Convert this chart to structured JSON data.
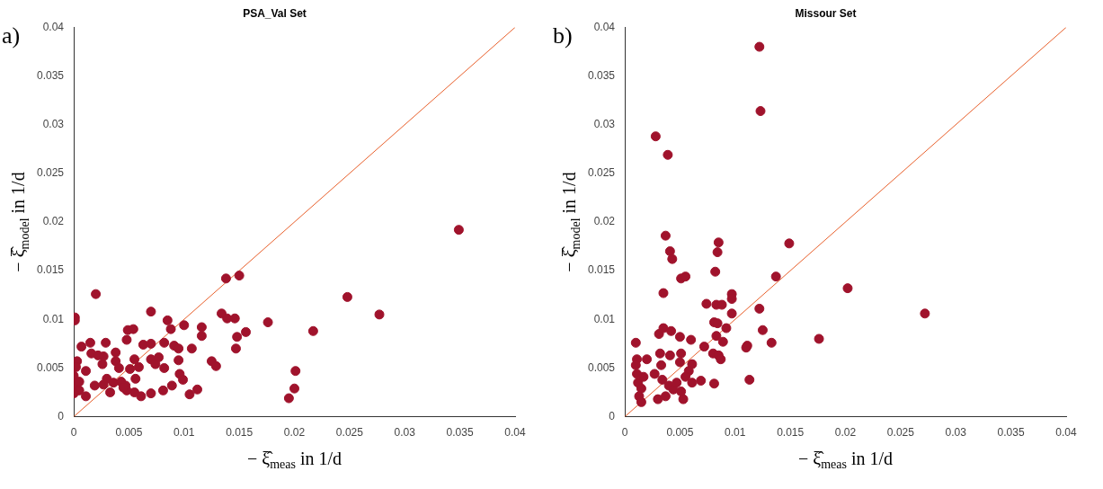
{
  "chart_data": [
    {
      "type": "scatter",
      "title": "PSA_Val Set",
      "xlabel": "− ξ̂$_{meas}$ in 1/d",
      "ylabel": "− ξ̂$_{model}$ in 1/d",
      "annotations": [
        "a)"
      ],
      "xlim": [
        0,
        0.04
      ],
      "ylim": [
        0,
        0.04
      ],
      "xticks": [
        0,
        0.005,
        0.01,
        0.015,
        0.02,
        0.025,
        0.03,
        0.035,
        0.04
      ],
      "yticks": [
        0,
        0.005,
        0.01,
        0.015,
        0.02,
        0.025,
        0.03,
        0.035,
        0.04
      ],
      "grid": false,
      "legend": false,
      "marker": "circle",
      "series": [
        {
          "color": "#a0132c",
          "x": [
            0.0138,
            0.015,
            0.002,
            0.0001,
            0.0001,
            0.007,
            0.0085,
            0.0088,
            0.01,
            0.0116,
            0.0116,
            0.0134,
            0.0139,
            0.0146,
            0.0156,
            0.0148,
            0.0176,
            0.0147,
            0.0107,
            0.0125,
            0.0129,
            0.0095,
            0.0096,
            0.0099,
            0.0089,
            0.0081,
            0.0112,
            0.0105,
            0.007,
            0.0061,
            0.0055,
            0.0048,
            0.0033,
            0.0056,
            0.0047,
            0.0091,
            0.0095,
            0.0082,
            0.0063,
            0.007,
            0.0048,
            0.0049,
            0.0054,
            0.0029,
            0.0015,
            0.0007,
            0.0016,
            0.0022,
            0.0027,
            0.0026,
            0.0003,
            0.0002,
            0.0011,
            0.0038,
            0.0038,
            0.0041,
            0.0055,
            0.0059,
            0.0051,
            0.007,
            0.0074,
            0.0077,
            0.0082,
            0.003,
            0.0036,
            0.0027,
            0.0019,
            0.0043,
            0.0045,
            0.0,
            0.0001,
            0.0005,
            0.0,
            0.0011,
            0.0005,
            0.0201,
            0.02,
            0.0195,
            0.0349,
            0.0248,
            0.0277,
            0.0217
          ],
          "values": [
            0.0142,
            0.0145,
            0.0126,
            0.0102,
            0.0099,
            0.0108,
            0.0099,
            0.009,
            0.0094,
            0.0092,
            0.0083,
            0.0106,
            0.0101,
            0.0101,
            0.0087,
            0.0082,
            0.0097,
            0.007,
            0.007,
            0.0057,
            0.0052,
            0.0058,
            0.0044,
            0.0038,
            0.0032,
            0.0027,
            0.0028,
            0.0023,
            0.0024,
            0.0021,
            0.0025,
            0.0027,
            0.0025,
            0.0039,
            0.0032,
            0.0073,
            0.007,
            0.0076,
            0.0074,
            0.0075,
            0.0079,
            0.0089,
            0.009,
            0.0076,
            0.0076,
            0.0072,
            0.0065,
            0.0063,
            0.0062,
            0.0054,
            0.0057,
            0.0051,
            0.0047,
            0.0066,
            0.0057,
            0.005,
            0.0059,
            0.0051,
            0.0049,
            0.0059,
            0.0054,
            0.0061,
            0.005,
            0.0039,
            0.0035,
            0.0033,
            0.0032,
            0.0036,
            0.003,
            0.0042,
            0.0033,
            0.0027,
            0.0024,
            0.0021,
            0.0036,
            0.0047,
            0.0029,
            0.0019,
            0.0192,
            0.0123,
            0.0105,
            0.0088
          ]
        },
        {
          "type": "line",
          "color": "#e8602c",
          "marker": "none",
          "x": [
            0,
            0.04
          ],
          "values": [
            0,
            0.04
          ]
        }
      ]
    },
    {
      "type": "scatter",
      "title": "Missour Set",
      "xlabel": "− ξ̂$_{meas}$ in 1/d",
      "ylabel": "− ξ̂$_{model}$ in 1/d",
      "annotations": [
        "b)"
      ],
      "xlim": [
        0,
        0.04
      ],
      "ylim": [
        0,
        0.04
      ],
      "xticks": [
        0,
        0.005,
        0.01,
        0.015,
        0.02,
        0.025,
        0.03,
        0.035,
        0.04
      ],
      "yticks": [
        0,
        0.005,
        0.01,
        0.015,
        0.02,
        0.025,
        0.03,
        0.035,
        0.04
      ],
      "grid": false,
      "legend": false,
      "marker": "circle",
      "series": [
        {
          "color": "#a0132c",
          "x": [
            0.0037,
            0.0041,
            0.0043,
            0.0051,
            0.0055,
            0.0035,
            0.0082,
            0.0085,
            0.0084,
            0.0149,
            0.0137,
            0.0074,
            0.0083,
            0.0088,
            0.0097,
            0.0097,
            0.0097,
            0.0122,
            0.0125,
            0.0133,
            0.0111,
            0.011,
            0.0113,
            0.0092,
            0.0081,
            0.0084,
            0.0083,
            0.0089,
            0.0072,
            0.008,
            0.0085,
            0.0087,
            0.0081,
            0.001,
            0.0011,
            0.002,
            0.0031,
            0.0035,
            0.0042,
            0.005,
            0.006,
            0.0032,
            0.0041,
            0.0051,
            0.005,
            0.0033,
            0.0061,
            0.0058,
            0.0069,
            0.0061,
            0.0027,
            0.0034,
            0.004,
            0.003,
            0.0037,
            0.0053,
            0.0051,
            0.0044,
            0.0047,
            0.0055,
            0.0012,
            0.0015,
            0.0013,
            0.0015,
            0.001,
            0.0017,
            0.0011,
            0.0122,
            0.0123,
            0.0028,
            0.0039,
            0.0202,
            0.0176,
            0.0272
          ],
          "values": [
            0.0186,
            0.017,
            0.0162,
            0.0142,
            0.0144,
            0.0127,
            0.0149,
            0.0179,
            0.0169,
            0.0178,
            0.0144,
            0.0116,
            0.0115,
            0.0115,
            0.0126,
            0.0121,
            0.0106,
            0.0111,
            0.0089,
            0.0076,
            0.0073,
            0.0071,
            0.0038,
            0.0091,
            0.0097,
            0.0096,
            0.0083,
            0.0077,
            0.0072,
            0.0065,
            0.0063,
            0.0059,
            0.0034,
            0.0076,
            0.0059,
            0.0059,
            0.0085,
            0.0091,
            0.0088,
            0.0082,
            0.0079,
            0.0065,
            0.0063,
            0.0065,
            0.0056,
            0.0053,
            0.0054,
            0.0047,
            0.0037,
            0.0035,
            0.0044,
            0.0038,
            0.0032,
            0.0018,
            0.0021,
            0.0018,
            0.0026,
            0.0028,
            0.0035,
            0.0041,
            0.0035,
            0.0029,
            0.0021,
            0.0015,
            0.0053,
            0.0041,
            0.0044,
            0.038,
            0.0314,
            0.0288,
            0.0269,
            0.0132,
            0.008,
            0.0106
          ]
        },
        {
          "type": "line",
          "color": "#e8602c",
          "marker": "none",
          "x": [
            0,
            0.04
          ],
          "values": [
            0,
            0.04
          ]
        }
      ]
    }
  ]
}
